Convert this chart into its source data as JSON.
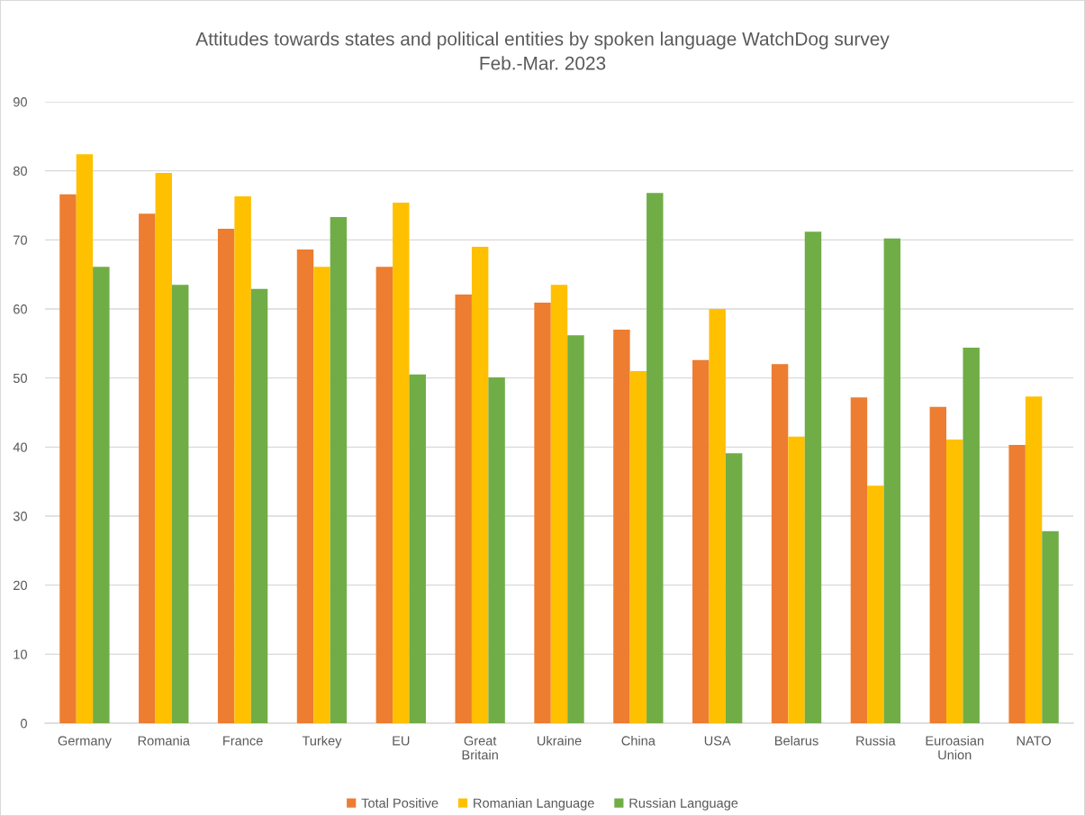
{
  "chart_data": {
    "type": "bar",
    "title": "Attitudes towards states and political entities by spoken language WatchDog survey",
    "subtitle": "Feb.-Mar. 2023",
    "categories": [
      "Germany",
      "Romania",
      "France",
      "Turkey",
      "EU",
      "Great Britain",
      "Ukraine",
      "China",
      "USA",
      "Belarus",
      "Russia",
      "Euroasian Union",
      "NATO"
    ],
    "series": [
      {
        "name": "Total Positive",
        "color": "#ed7d31",
        "values": [
          76.6,
          73.8,
          71.6,
          68.6,
          66.1,
          62.1,
          60.9,
          57.0,
          52.6,
          52.0,
          47.2,
          45.8,
          40.3
        ]
      },
      {
        "name": "Romanian Language",
        "color": "#ffc000",
        "values": [
          82.4,
          79.7,
          76.3,
          66.1,
          75.4,
          69.0,
          63.5,
          51.0,
          60.0,
          41.5,
          34.4,
          41.1,
          47.3
        ]
      },
      {
        "name": "Russian Language",
        "color": "#70ad47",
        "values": [
          66.1,
          63.5,
          62.9,
          73.3,
          50.5,
          50.1,
          56.2,
          76.8,
          39.1,
          71.2,
          70.2,
          54.4,
          27.8
        ]
      }
    ],
    "ylim": [
      0,
      90
    ],
    "yticks": [
      0,
      10,
      20,
      30,
      40,
      50,
      60,
      70,
      80,
      90
    ],
    "grid": "y",
    "legend": "bottom"
  }
}
